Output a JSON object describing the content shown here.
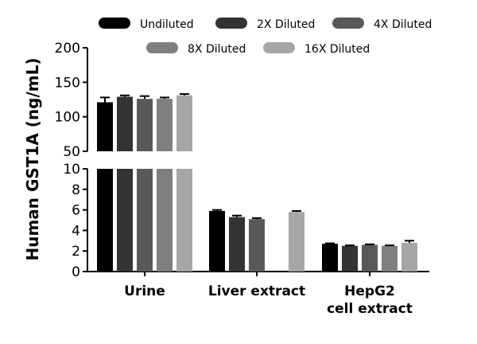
{
  "chart_data": {
    "type": "bar",
    "ylabel": "Human GST1A (ng/mL)",
    "xlabel": "",
    "title": "",
    "axis_break": {
      "lower_range": [
        0,
        10
      ],
      "upper_range": [
        50,
        200
      ]
    },
    "yticks_lower": [
      0,
      2,
      4,
      6,
      8,
      10
    ],
    "yticks_upper": [
      50,
      100,
      150,
      200
    ],
    "categories": [
      [
        "Urine"
      ],
      [
        "Liver extract"
      ],
      [
        "HepG2",
        "cell extract"
      ]
    ],
    "series": [
      {
        "name": "Undiluted",
        "color": "#000000",
        "values": [
          121,
          5.9,
          2.7
        ],
        "errors": [
          7,
          0.1,
          0.05
        ]
      },
      {
        "name": "2X Diluted",
        "color": "#333333",
        "values": [
          129,
          5.3,
          2.5
        ],
        "errors": [
          2,
          0.15,
          0.05
        ]
      },
      {
        "name": "4X Diluted",
        "color": "#595959",
        "values": [
          126,
          5.1,
          2.6
        ],
        "errors": [
          4,
          0.1,
          0.05
        ]
      },
      {
        "name": "8X Diluted",
        "color": "#7f7f7f",
        "values": [
          126,
          null,
          2.5
        ],
        "errors": [
          2,
          null,
          0.05
        ]
      },
      {
        "name": "16X Diluted",
        "color": "#a6a6a6",
        "values": [
          131,
          5.8,
          2.8
        ],
        "errors": [
          2,
          0.1,
          0.2
        ]
      }
    ],
    "legend_position": "top"
  }
}
